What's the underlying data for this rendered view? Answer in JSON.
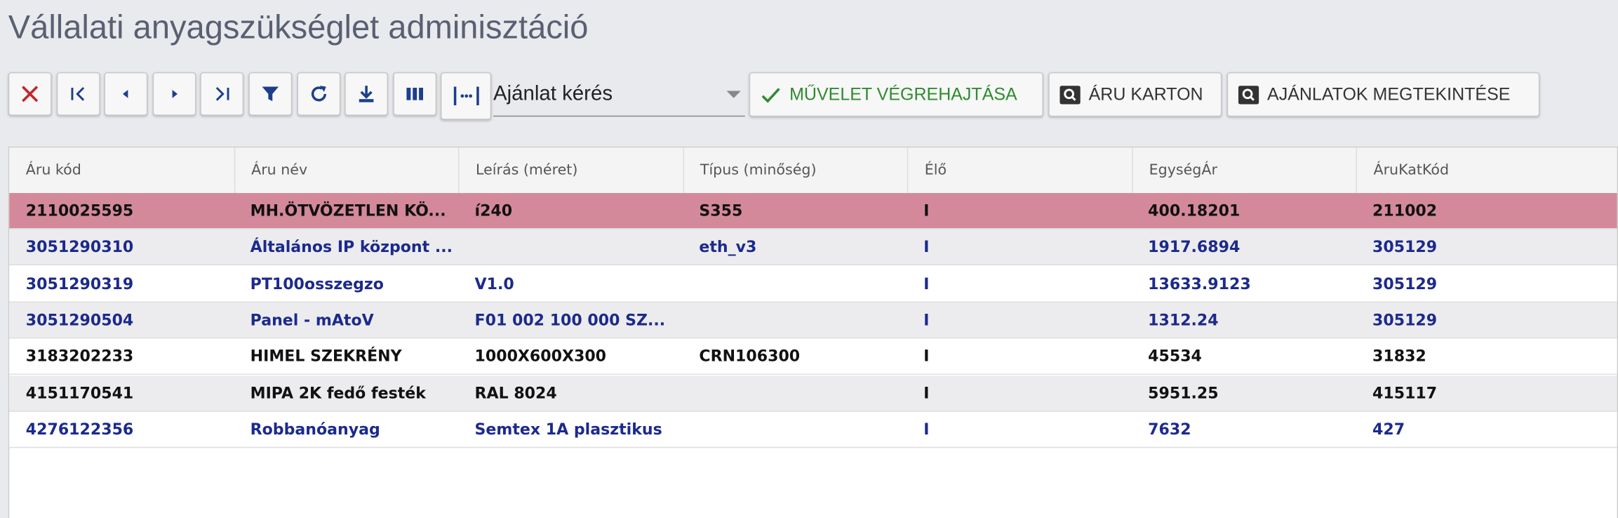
{
  "header": {
    "title": "Vállalati anyagszükséglet adminisztáció"
  },
  "toolbar": {
    "dropdown": "Ajánlat kérés",
    "buttons": [
      {
        "label": "MŰVELET VÉGREHAJTÁSA",
        "color": "#2e8b2e"
      },
      {
        "label": "ÁRU KARTON",
        "color": "#333333"
      },
      {
        "label": "AJÁNLATOK MEGTEKINTÉSE",
        "color": "#333333"
      }
    ]
  },
  "table": {
    "columns": [
      "Áru kód",
      "Áru név",
      "Leírás (méret)",
      "Típus (minőség)",
      "Élő",
      "EgységÁr",
      "ÁruKatKód"
    ],
    "rows": [
      {
        "color": "#111111",
        "background": "#d4899a",
        "cells": [
          "2110025595",
          "MH.ÖTVÖZETLEN KÖ...",
          "í240",
          "S355",
          "I",
          "400.18201",
          "211002"
        ]
      },
      {
        "color": "#1c2a8c",
        "background": "#ececee",
        "cells": [
          "3051290310",
          "Általános IP központ ...",
          null,
          "eth_v3",
          "I",
          "1917.6894",
          "305129"
        ]
      },
      {
        "color": "#1c2a8c",
        "background": "#ffffff",
        "cells": [
          "3051290319",
          "PT100osszegzo",
          "V1.0",
          null,
          "I",
          "13633.9123",
          "305129"
        ]
      },
      {
        "color": "#1c2a8c",
        "background": "#ececee",
        "cells": [
          "3051290504",
          "Panel - mAtoV",
          "F01 002 100 000 SZ...",
          null,
          "I",
          "1312.24",
          "305129"
        ]
      },
      {
        "color": "#111111",
        "background": "#ffffff",
        "cells": [
          "3183202233",
          "HIMEL SZEKRÉNY",
          "1000X600X300",
          "CRN106300",
          "I",
          "45534",
          "31832"
        ]
      },
      {
        "color": "#111111",
        "background": "#ececee",
        "cells": [
          "4151170541",
          "MIPA 2K fedő festék",
          "RAL 8024",
          null,
          "I",
          "5951.25",
          "415117"
        ]
      },
      {
        "color": "#1c2a8c",
        "background": "#ffffff",
        "cells": [
          "4276122356",
          "Robbanóanyag",
          "Semtex 1A plasztikus",
          null,
          "I",
          "7632",
          "427"
        ]
      }
    ]
  }
}
